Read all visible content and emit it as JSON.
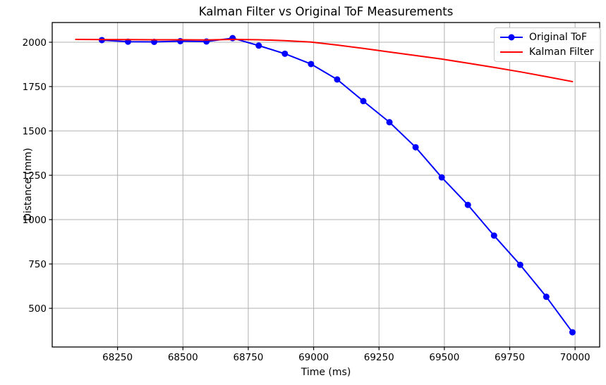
{
  "chart_data": {
    "type": "line",
    "title": "Kalman Filter vs Original ToF Measurements",
    "xlabel": "Time (ms)",
    "ylabel": "Distance (mm)",
    "xlim": [
      68000,
      70094
    ],
    "ylim": [
      282,
      2111
    ],
    "xticks": [
      68250,
      68500,
      68750,
      69000,
      69250,
      69500,
      69750,
      70000
    ],
    "yticks": [
      500,
      750,
      1000,
      1250,
      1500,
      1750,
      2000
    ],
    "grid": true,
    "grid_color": "#b0b0b0",
    "spine_color": "#000000",
    "legend_position": "upper right",
    "series": [
      {
        "name": "Original ToF",
        "color": "#0000ff",
        "marker": "circle",
        "line_width": 2,
        "x": [
          68190,
          68290,
          68390,
          68490,
          68590,
          68690,
          68790,
          68890,
          68990,
          69090,
          69190,
          69290,
          69390,
          69490,
          69590,
          69690,
          69790,
          69890,
          69990
        ],
        "y": [
          2012,
          2003,
          2002,
          2006,
          2004,
          2023,
          1981,
          1935,
          1877,
          1790,
          1668,
          1549,
          1408,
          1238,
          1083,
          910,
          745,
          565,
          365
        ]
      },
      {
        "name": "Kalman Filter",
        "color": "#ff0000",
        "marker": "none",
        "line_width": 2,
        "x": [
          68090,
          68190,
          68290,
          68390,
          68490,
          68590,
          68690,
          68790,
          68890,
          68990,
          69090,
          69190,
          69290,
          69390,
          69490,
          69590,
          69690,
          69790,
          69890,
          69990
        ],
        "y": [
          2016,
          2015,
          2015,
          2014,
          2014,
          2013,
          2016,
          2014,
          2009,
          2001,
          1984,
          1965,
          1945,
          1925,
          1905,
          1882,
          1858,
          1833,
          1806,
          1778
        ]
      }
    ]
  }
}
